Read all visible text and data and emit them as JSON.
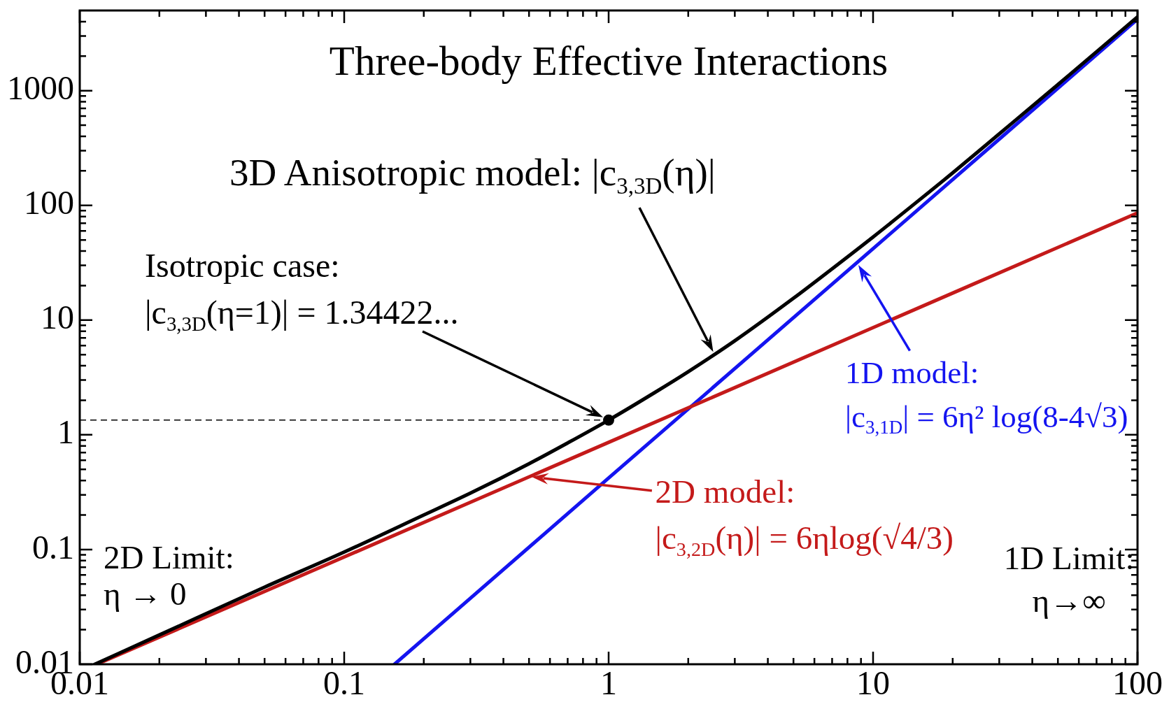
{
  "chart_data": {
    "type": "line",
    "title": "Three-body Effective Interactions",
    "log": "xy",
    "xlim": [
      0.01,
      100
    ],
    "ylim": [
      0.01,
      5000
    ],
    "xticks": [
      0.01,
      {
        "value": 0.02,
        "label": null
      },
      {
        "value": 0.03,
        "label": null
      },
      {
        "value": 0.04,
        "label": null
      },
      {
        "value": 0.05,
        "label": null
      },
      {
        "value": 0.06,
        "label": null
      },
      {
        "value": 0.07,
        "label": null
      },
      {
        "value": 0.08,
        "label": null
      },
      {
        "value": 0.09,
        "label": null
      },
      0.1,
      {
        "value": 0.2,
        "label": null
      },
      {
        "value": 0.3,
        "label": null
      },
      {
        "value": 0.4,
        "label": null
      },
      {
        "value": 0.5,
        "label": null
      },
      {
        "value": 0.6,
        "label": null
      },
      {
        "value": 0.7,
        "label": null
      },
      {
        "value": 0.8,
        "label": null
      },
      {
        "value": 0.9,
        "label": null
      },
      1,
      {
        "value": 2,
        "label": null
      },
      {
        "value": 3,
        "label": null
      },
      {
        "value": 4,
        "label": null
      },
      {
        "value": 5,
        "label": null
      },
      {
        "value": 6,
        "label": null
      },
      {
        "value": 7,
        "label": null
      },
      {
        "value": 8,
        "label": null
      },
      {
        "value": 9,
        "label": null
      },
      10,
      {
        "value": 20,
        "label": null
      },
      {
        "value": 30,
        "label": null
      },
      {
        "value": 40,
        "label": null
      },
      {
        "value": 50,
        "label": null
      },
      {
        "value": 60,
        "label": null
      },
      {
        "value": 70,
        "label": null
      },
      {
        "value": 80,
        "label": null
      },
      {
        "value": 90,
        "label": null
      },
      100
    ],
    "yticks": [
      0.01,
      {
        "value": 0.02,
        "label": null
      },
      {
        "value": 0.03,
        "label": null
      },
      {
        "value": 0.04,
        "label": null
      },
      {
        "value": 0.05,
        "label": null
      },
      {
        "value": 0.06,
        "label": null
      },
      {
        "value": 0.07,
        "label": null
      },
      {
        "value": 0.08,
        "label": null
      },
      {
        "value": 0.09,
        "label": null
      },
      0.1,
      {
        "value": 0.2,
        "label": null
      },
      {
        "value": 0.3,
        "label": null
      },
      {
        "value": 0.4,
        "label": null
      },
      {
        "value": 0.5,
        "label": null
      },
      {
        "value": 0.6,
        "label": null
      },
      {
        "value": 0.7,
        "label": null
      },
      {
        "value": 0.8,
        "label": null
      },
      {
        "value": 0.9,
        "label": null
      },
      1,
      {
        "value": 2,
        "label": null
      },
      {
        "value": 3,
        "label": null
      },
      {
        "value": 4,
        "label": null
      },
      {
        "value": 5,
        "label": null
      },
      {
        "value": 6,
        "label": null
      },
      {
        "value": 7,
        "label": null
      },
      {
        "value": 8,
        "label": null
      },
      {
        "value": 9,
        "label": null
      },
      10,
      {
        "value": 20,
        "label": null
      },
      {
        "value": 30,
        "label": null
      },
      {
        "value": 40,
        "label": null
      },
      {
        "value": 50,
        "label": null
      },
      {
        "value": 60,
        "label": null
      },
      {
        "value": 70,
        "label": null
      },
      {
        "value": 80,
        "label": null
      },
      {
        "value": 90,
        "label": null
      },
      100,
      {
        "value": 200,
        "label": null
      },
      {
        "value": 300,
        "label": null
      },
      {
        "value": 400,
        "label": null
      },
      {
        "value": 500,
        "label": null
      },
      {
        "value": 600,
        "label": null
      },
      {
        "value": 700,
        "label": null
      },
      {
        "value": 800,
        "label": null
      },
      {
        "value": 900,
        "label": null
      },
      1000,
      {
        "value": 2000,
        "label": null
      },
      {
        "value": 3000,
        "label": null
      },
      {
        "value": 4000,
        "label": null
      }
    ],
    "series": [
      {
        "name": "3D Anisotropic model: |c$_{3,3D}$(η)|",
        "color": "#000000",
        "x": [
          0.0114,
          0.02,
          0.05,
          0.1,
          0.2,
          0.3,
          0.5,
          0.7,
          1,
          1.5,
          2,
          3,
          5,
          7,
          10,
          15,
          20,
          30,
          50,
          100
        ],
        "values": [
          0.01,
          0.018,
          0.047,
          0.095,
          0.2,
          0.31,
          0.56,
          0.85,
          1.34422,
          2.35,
          3.55,
          6.6,
          15.5,
          28,
          53,
          112,
          192,
          420,
          1130,
          4400
        ]
      },
      {
        "name": "2D model:\n|c$_{3,2D}$(η)| = 6ηlog(√4/3)",
        "color": "#c41a1a",
        "x": [
          0.0116,
          1,
          100
        ],
        "values": [
          0.01,
          0.86,
          86
        ]
      },
      {
        "name": "1D model:\n|c$_{3,1D}$| = 6η² log(8-4√3)",
        "color": "#1414f0",
        "x": [
          0.155,
          1,
          10,
          100
        ],
        "values": [
          0.01,
          0.42,
          42,
          4200
        ]
      },
      {
        "type": "line",
        "line_style": "dashed",
        "color": "#000000",
        "x": [
          0.01,
          1
        ],
        "values": [
          1.34422,
          1.34422
        ]
      },
      {
        "type": "scatter",
        "marker": "circle",
        "color": "#000000",
        "x": [
          1
        ],
        "values": [
          1.34422
        ]
      }
    ],
    "annotations": [
      "Isotropic case:\n|c$_{3,3D}$(η=1)| = 1.34422...",
      "2D Limit:\nη → 0",
      "1D Limit:\nη→∞"
    ]
  }
}
